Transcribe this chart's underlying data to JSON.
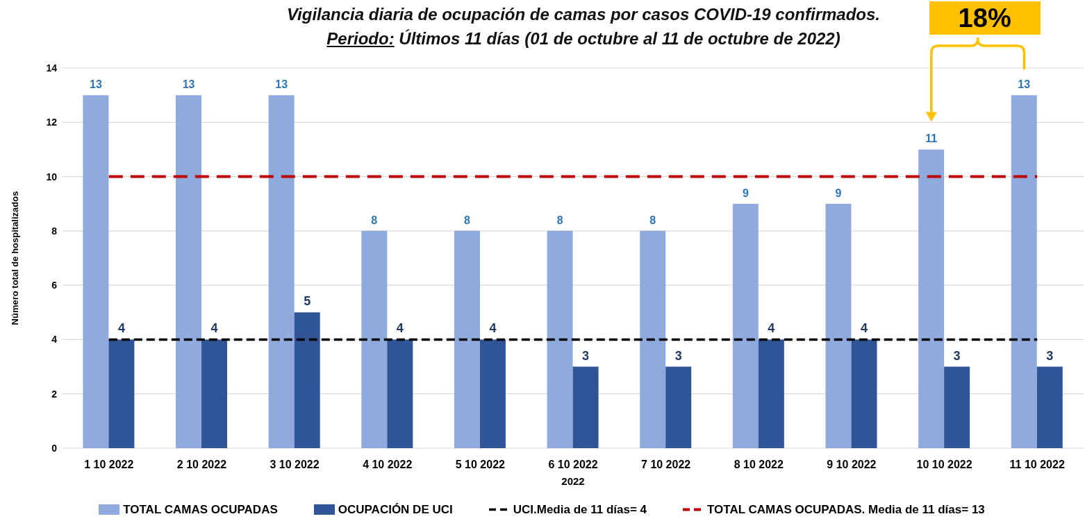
{
  "chart_data": {
    "type": "bar",
    "title": "Vigilancia diaria de ocupación de camas por casos COVID-19 confirmados.",
    "subtitle": "Periodo: Últimos 11 días (01 de octubre al 11 de octubre de 2022)",
    "xlabel": "2022",
    "ylabel": "Número total de hospitalizados",
    "annotations": [
      "18%"
    ],
    "categories": [
      "1 10 2022",
      "2 10 2022",
      "3 10 2022",
      "4 10 2022",
      "5 10 2022",
      "6 10 2022",
      "7 10 2022",
      "8 10 2022",
      "9 10 2022",
      "10 10 2022",
      "11 10 2022"
    ],
    "series": [
      {
        "name": "TOTAL CAMAS OCUPADAS",
        "color": "#8faadc",
        "values": [
          13,
          13,
          13,
          8,
          8,
          8,
          8,
          9,
          9,
          11,
          13
        ],
        "value_labels": [
          "13",
          "13",
          "13",
          "8",
          "8",
          "8",
          "8",
          "9",
          "9",
          "11",
          "13"
        ]
      },
      {
        "name": "OCUPACIÓN DE UCI",
        "color": "#2f5597",
        "values": [
          4,
          4,
          5,
          4,
          4,
          3,
          3,
          4,
          4,
          3,
          3
        ],
        "value_labels": [
          "4",
          "4",
          "5",
          "4",
          "4",
          "3",
          "3",
          "4",
          "4",
          "3",
          "3"
        ]
      },
      {
        "name": "UCI.Media de 11 días= 4",
        "type": "line",
        "color": "#000000",
        "line_style": "dashed",
        "values": [
          4,
          4,
          4,
          4,
          4,
          4,
          4,
          4,
          4,
          4,
          4
        ]
      },
      {
        "name": "TOTAL CAMAS OCUPADAS. Media de 11 días= 13",
        "type": "line",
        "color": "#c00000",
        "line_style": "dashed",
        "values": [
          10,
          10,
          10,
          10,
          10,
          10,
          10,
          10,
          10,
          10,
          10
        ]
      }
    ],
    "ylim": [
      0,
      14
    ],
    "yticks": [
      0,
      2,
      4,
      6,
      8,
      10,
      12,
      14
    ],
    "grid": "y",
    "legend": "bottom"
  }
}
